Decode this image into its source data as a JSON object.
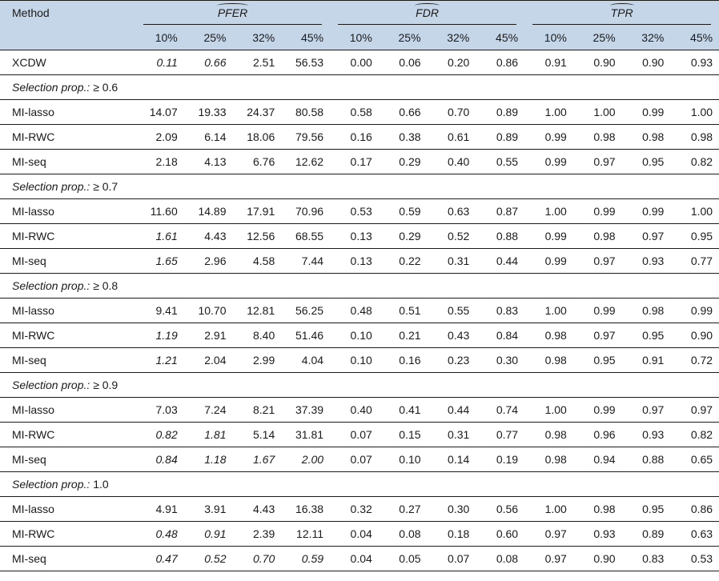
{
  "header": {
    "method_label": "Method",
    "groups": [
      "PFER",
      "FDR",
      "TPR"
    ],
    "pcts": [
      "10%",
      "25%",
      "32%",
      "45%"
    ]
  },
  "rows": [
    {
      "type": "data",
      "method": "XCDW",
      "v": [
        "0.11",
        "0.66",
        "2.51",
        "56.53",
        "0.00",
        "0.06",
        "0.20",
        "0.86",
        "0.91",
        "0.90",
        "0.90",
        "0.93"
      ],
      "it": [
        0,
        1
      ]
    },
    {
      "type": "section",
      "label": "Selection prop.:",
      "value": "≥ 0.6"
    },
    {
      "type": "data",
      "method": "MI-lasso",
      "v": [
        "14.07",
        "19.33",
        "24.37",
        "80.58",
        "0.58",
        "0.66",
        "0.70",
        "0.89",
        "1.00",
        "1.00",
        "0.99",
        "1.00"
      ],
      "it": []
    },
    {
      "type": "data",
      "method": "MI-RWC",
      "v": [
        "2.09",
        "6.14",
        "18.06",
        "79.56",
        "0.16",
        "0.38",
        "0.61",
        "0.89",
        "0.99",
        "0.98",
        "0.98",
        "0.98"
      ],
      "it": []
    },
    {
      "type": "data",
      "method": "MI-seq",
      "v": [
        "2.18",
        "4.13",
        "6.76",
        "12.62",
        "0.17",
        "0.29",
        "0.40",
        "0.55",
        "0.99",
        "0.97",
        "0.95",
        "0.82"
      ],
      "it": []
    },
    {
      "type": "section",
      "label": "Selection prop.:",
      "value": "≥ 0.7"
    },
    {
      "type": "data",
      "method": "MI-lasso",
      "v": [
        "11.60",
        "14.89",
        "17.91",
        "70.96",
        "0.53",
        "0.59",
        "0.63",
        "0.87",
        "1.00",
        "0.99",
        "0.99",
        "1.00"
      ],
      "it": []
    },
    {
      "type": "data",
      "method": "MI-RWC",
      "v": [
        "1.61",
        "4.43",
        "12.56",
        "68.55",
        "0.13",
        "0.29",
        "0.52",
        "0.88",
        "0.99",
        "0.98",
        "0.97",
        "0.95"
      ],
      "it": [
        0
      ]
    },
    {
      "type": "data",
      "method": "MI-seq",
      "v": [
        "1.65",
        "2.96",
        "4.58",
        "7.44",
        "0.13",
        "0.22",
        "0.31",
        "0.44",
        "0.99",
        "0.97",
        "0.93",
        "0.77"
      ],
      "it": [
        0
      ]
    },
    {
      "type": "section",
      "label": "Selection prop.:",
      "value": "≥ 0.8"
    },
    {
      "type": "data",
      "method": "MI-lasso",
      "v": [
        "9.41",
        "10.70",
        "12.81",
        "56.25",
        "0.48",
        "0.51",
        "0.55",
        "0.83",
        "1.00",
        "0.99",
        "0.98",
        "0.99"
      ],
      "it": []
    },
    {
      "type": "data",
      "method": "MI-RWC",
      "v": [
        "1.19",
        "2.91",
        "8.40",
        "51.46",
        "0.10",
        "0.21",
        "0.43",
        "0.84",
        "0.98",
        "0.97",
        "0.95",
        "0.90"
      ],
      "it": [
        0
      ]
    },
    {
      "type": "data",
      "method": "MI-seq",
      "v": [
        "1.21",
        "2.04",
        "2.99",
        "4.04",
        "0.10",
        "0.16",
        "0.23",
        "0.30",
        "0.98",
        "0.95",
        "0.91",
        "0.72"
      ],
      "it": [
        0
      ]
    },
    {
      "type": "section",
      "label": "Selection prop.:",
      "value": "≥ 0.9"
    },
    {
      "type": "data",
      "method": "MI-lasso",
      "v": [
        "7.03",
        "7.24",
        "8.21",
        "37.39",
        "0.40",
        "0.41",
        "0.44",
        "0.74",
        "1.00",
        "0.99",
        "0.97",
        "0.97"
      ],
      "it": []
    },
    {
      "type": "data",
      "method": "MI-RWC",
      "v": [
        "0.82",
        "1.81",
        "5.14",
        "31.81",
        "0.07",
        "0.15",
        "0.31",
        "0.77",
        "0.98",
        "0.96",
        "0.93",
        "0.82"
      ],
      "it": [
        0,
        1
      ]
    },
    {
      "type": "data",
      "method": "MI-seq",
      "v": [
        "0.84",
        "1.18",
        "1.67",
        "2.00",
        "0.07",
        "0.10",
        "0.14",
        "0.19",
        "0.98",
        "0.94",
        "0.88",
        "0.65"
      ],
      "it": [
        0,
        1,
        2,
        3
      ]
    },
    {
      "type": "section",
      "label": "Selection prop.:",
      "value": "1.0"
    },
    {
      "type": "data",
      "method": "MI-lasso",
      "v": [
        "4.91",
        "3.91",
        "4.43",
        "16.38",
        "0.32",
        "0.27",
        "0.30",
        "0.56",
        "1.00",
        "0.98",
        "0.95",
        "0.86"
      ],
      "it": []
    },
    {
      "type": "data",
      "method": "MI-RWC",
      "v": [
        "0.48",
        "0.91",
        "2.39",
        "12.11",
        "0.04",
        "0.08",
        "0.18",
        "0.60",
        "0.97",
        "0.93",
        "0.89",
        "0.63"
      ],
      "it": [
        0,
        1
      ]
    },
    {
      "type": "data",
      "method": "MI-seq",
      "v": [
        "0.47",
        "0.52",
        "0.70",
        "0.59",
        "0.04",
        "0.05",
        "0.07",
        "0.08",
        "0.97",
        "0.90",
        "0.83",
        "0.53"
      ],
      "it": [
        0,
        1,
        2,
        3
      ]
    }
  ]
}
